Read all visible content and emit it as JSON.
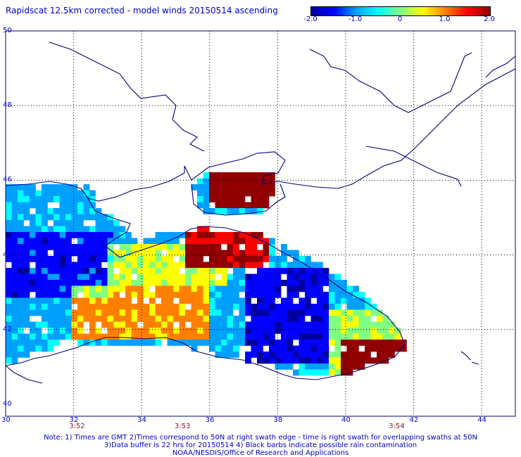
{
  "title": "Rapidscat 12.5km corrected - model winds 20150514 ascending",
  "colorbar": {
    "labels": [
      "-2.0",
      "-1.0",
      "0",
      "1.0",
      "2.0"
    ],
    "colors": [
      "#0000a0",
      "#0000ff",
      "#00a0ff",
      "#00ffff",
      "#80ff80",
      "#ffff00",
      "#ff8000",
      "#ff0000",
      "#900000"
    ],
    "min": -2.0,
    "max": 2.0
  },
  "map": {
    "lon_labels": [
      "30",
      "32",
      "34",
      "36",
      "38",
      "40",
      "42",
      "44"
    ],
    "lat_labels": [
      "50",
      "48",
      "46",
      "44",
      "42",
      "40"
    ],
    "coast_color": "#00007a",
    "grid": true
  },
  "times": [
    {
      "label": "3:52",
      "lon": 32.1
    },
    {
      "label": "3:53",
      "lon": 35.2
    },
    {
      "label": "3:54",
      "lon": 41.5
    }
  ],
  "notes": [
    "Note: 1) Times are GMT 2)Times correspond to 50N at right swath edge - time is right swath for overlapping swaths at 50N",
    "3)Data buffer is 22 hrs for 20150514 4) Black barbs indicate possible rain contamination",
    "NOAA/NESDIS/Office of Research and Applications"
  ]
}
